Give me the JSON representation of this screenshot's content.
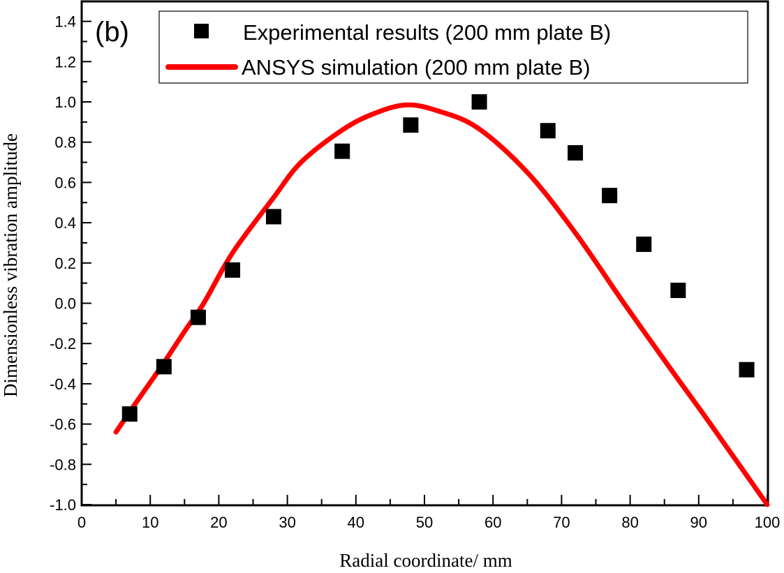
{
  "chart_data": {
    "type": "scatter+line",
    "panel_label": "(b)",
    "xlabel": "Radial coordinate/ mm",
    "ylabel": "Dimensionless vibration amplitude",
    "xlim": [
      0,
      100
    ],
    "ylim": [
      -1.0,
      1.45
    ],
    "xticks": [
      "0",
      "10",
      "20",
      "30",
      "40",
      "50",
      "60",
      "70",
      "80",
      "90",
      "100"
    ],
    "yticks": [
      "-1.0",
      "-0.8",
      "-0.6",
      "-0.4",
      "-0.2",
      "0.0",
      "0.2",
      "0.4",
      "0.6",
      "0.8",
      "1.0",
      "1.2",
      "1.4"
    ],
    "grid": false,
    "legend_position": "top",
    "series": [
      {
        "name": "Experimental results (200 mm plate B)",
        "kind": "scatter",
        "marker": "square",
        "color": "#000000",
        "x": [
          7,
          12,
          17,
          22,
          28,
          38,
          48,
          58,
          68,
          72,
          77,
          82,
          87,
          97
        ],
        "y": [
          -0.55,
          -0.315,
          -0.07,
          0.165,
          0.43,
          0.755,
          0.885,
          1.0,
          0.857,
          0.747,
          0.535,
          0.293,
          0.064,
          -0.33
        ]
      },
      {
        "name": "ANSYS simulation (200 mm plate B)",
        "kind": "line",
        "color": "#ff0000",
        "x": [
          5,
          8,
          11.6,
          15,
          17.8,
          22,
          28,
          32,
          38,
          42.5,
          47.3,
          52,
          57.8,
          65,
          72,
          79.1,
          86.2,
          91.3,
          100
        ],
        "y": [
          -0.64,
          -0.49,
          -0.315,
          -0.14,
          0.0,
          0.25,
          0.525,
          0.7,
          0.86,
          0.94,
          0.985,
          0.955,
          0.87,
          0.65,
          0.35,
          0.0,
          -0.34,
          -0.58,
          -1.0
        ]
      }
    ]
  }
}
